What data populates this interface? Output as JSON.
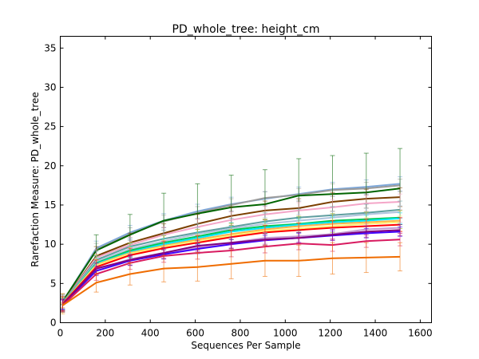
{
  "chart_data": {
    "type": "line",
    "title": "PD_whole_tree: height_cm",
    "xlabel": "Sequences Per Sample",
    "ylabel": "Rarefaction Measure: PD_whole_tree",
    "xlim": [
      0,
      1650
    ],
    "ylim": [
      0,
      36.5
    ],
    "xticks": [
      "0",
      "200",
      "400",
      "600",
      "800",
      "1000",
      "1200",
      "1400",
      "1600"
    ],
    "yticks": [
      "0",
      "5",
      "10",
      "15",
      "20",
      "25",
      "30",
      "35"
    ],
    "grid": false,
    "legend": "none",
    "x": [
      10,
      160,
      310,
      460,
      610,
      760,
      910,
      1060,
      1210,
      1360,
      1510
    ],
    "series": [
      {
        "color": "#7da7d9",
        "values": [
          2.6,
          9.5,
          11.5,
          13.0,
          14.2,
          15.1,
          15.8,
          16.4,
          17.0,
          17.3,
          17.7
        ],
        "err": 0.9
      },
      {
        "color": "#9b9b9b",
        "values": [
          2.6,
          9.3,
          11.3,
          12.9,
          14.0,
          15.0,
          15.9,
          16.3,
          16.9,
          17.1,
          17.5
        ],
        "err": 0.8
      },
      {
        "color": "#006400",
        "values": [
          2.7,
          9.2,
          11.2,
          13.0,
          13.9,
          14.7,
          15.1,
          16.2,
          16.4,
          16.6,
          17.1
        ],
        "err": [
          0.4,
          2.0,
          2.6,
          3.5,
          3.8,
          4.1,
          4.4,
          4.7,
          4.9,
          5.0,
          5.1
        ]
      },
      {
        "color": "#7b3f00",
        "values": [
          2.5,
          8.5,
          10.2,
          11.4,
          12.6,
          13.6,
          14.3,
          14.6,
          15.4,
          15.8,
          16.0
        ],
        "err": 1.2
      },
      {
        "color": "#f4a6c8",
        "values": [
          2.5,
          8.3,
          9.9,
          11.2,
          12.2,
          13.1,
          13.8,
          14.3,
          14.7,
          15.2,
          15.4
        ],
        "err": 1.0
      },
      {
        "color": "#5f9ea0",
        "values": [
          2.5,
          8.0,
          9.7,
          10.7,
          11.5,
          12.2,
          12.9,
          13.4,
          13.7,
          14.0,
          14.4
        ],
        "err": 1.1
      },
      {
        "color": "#b0c4de",
        "values": [
          2.4,
          7.8,
          9.4,
          10.4,
          11.3,
          12.0,
          12.6,
          13.0,
          13.4,
          13.8,
          14.1
        ],
        "err": 0.8
      },
      {
        "color": "#00c853",
        "values": [
          2.4,
          7.6,
          9.2,
          10.2,
          11.0,
          11.8,
          12.3,
          12.6,
          13.0,
          13.2,
          13.4
        ],
        "err": 0.9
      },
      {
        "color": "#00e5ff",
        "values": [
          2.4,
          7.5,
          9.0,
          10.0,
          10.8,
          11.6,
          12.1,
          12.5,
          12.8,
          13.0,
          13.3
        ],
        "err": 0.7
      },
      {
        "color": "#ffb347",
        "values": [
          2.4,
          7.4,
          8.9,
          9.8,
          10.6,
          11.3,
          11.9,
          12.3,
          12.6,
          12.8,
          13.0
        ],
        "err": 1.3
      },
      {
        "color": "#fff176",
        "values": [
          2.4,
          7.3,
          8.8,
          9.7,
          10.4,
          11.1,
          11.7,
          12.0,
          12.3,
          12.6,
          12.8
        ],
        "err": 0.8
      },
      {
        "color": "#ff0000",
        "values": [
          2.4,
          7.1,
          8.6,
          9.5,
          10.2,
          10.9,
          11.5,
          11.8,
          12.1,
          12.3,
          12.5
        ],
        "err": 0.9
      },
      {
        "color": "#c39bd3",
        "values": [
          2.3,
          6.8,
          8.1,
          8.9,
          9.6,
          10.2,
          10.8,
          11.0,
          11.3,
          11.9,
          12.1
        ],
        "err": 0.7
      },
      {
        "color": "#3f00ff",
        "values": [
          2.3,
          6.6,
          7.9,
          8.7,
          9.4,
          10.0,
          10.5,
          10.8,
          11.1,
          11.4,
          11.6
        ],
        "err": 0.6
      },
      {
        "color": "#800080",
        "values": [
          2.3,
          6.9,
          8.0,
          8.9,
          9.8,
          10.2,
          10.6,
          10.8,
          11.2,
          11.6,
          11.8
        ],
        "err": 0.7
      },
      {
        "color": "#d81b60",
        "values": [
          2.2,
          6.2,
          7.6,
          8.5,
          8.9,
          9.2,
          9.7,
          10.1,
          9.9,
          10.4,
          10.6
        ],
        "err": 0.8
      },
      {
        "color": "#ef6c00",
        "values": [
          2.2,
          5.1,
          6.2,
          6.9,
          7.1,
          7.5,
          7.9,
          7.9,
          8.2,
          8.3,
          8.4
        ],
        "err": [
          0.3,
          1.2,
          1.4,
          1.7,
          1.8,
          1.9,
          2.0,
          2.0,
          2.0,
          1.9,
          1.8
        ]
      }
    ]
  }
}
